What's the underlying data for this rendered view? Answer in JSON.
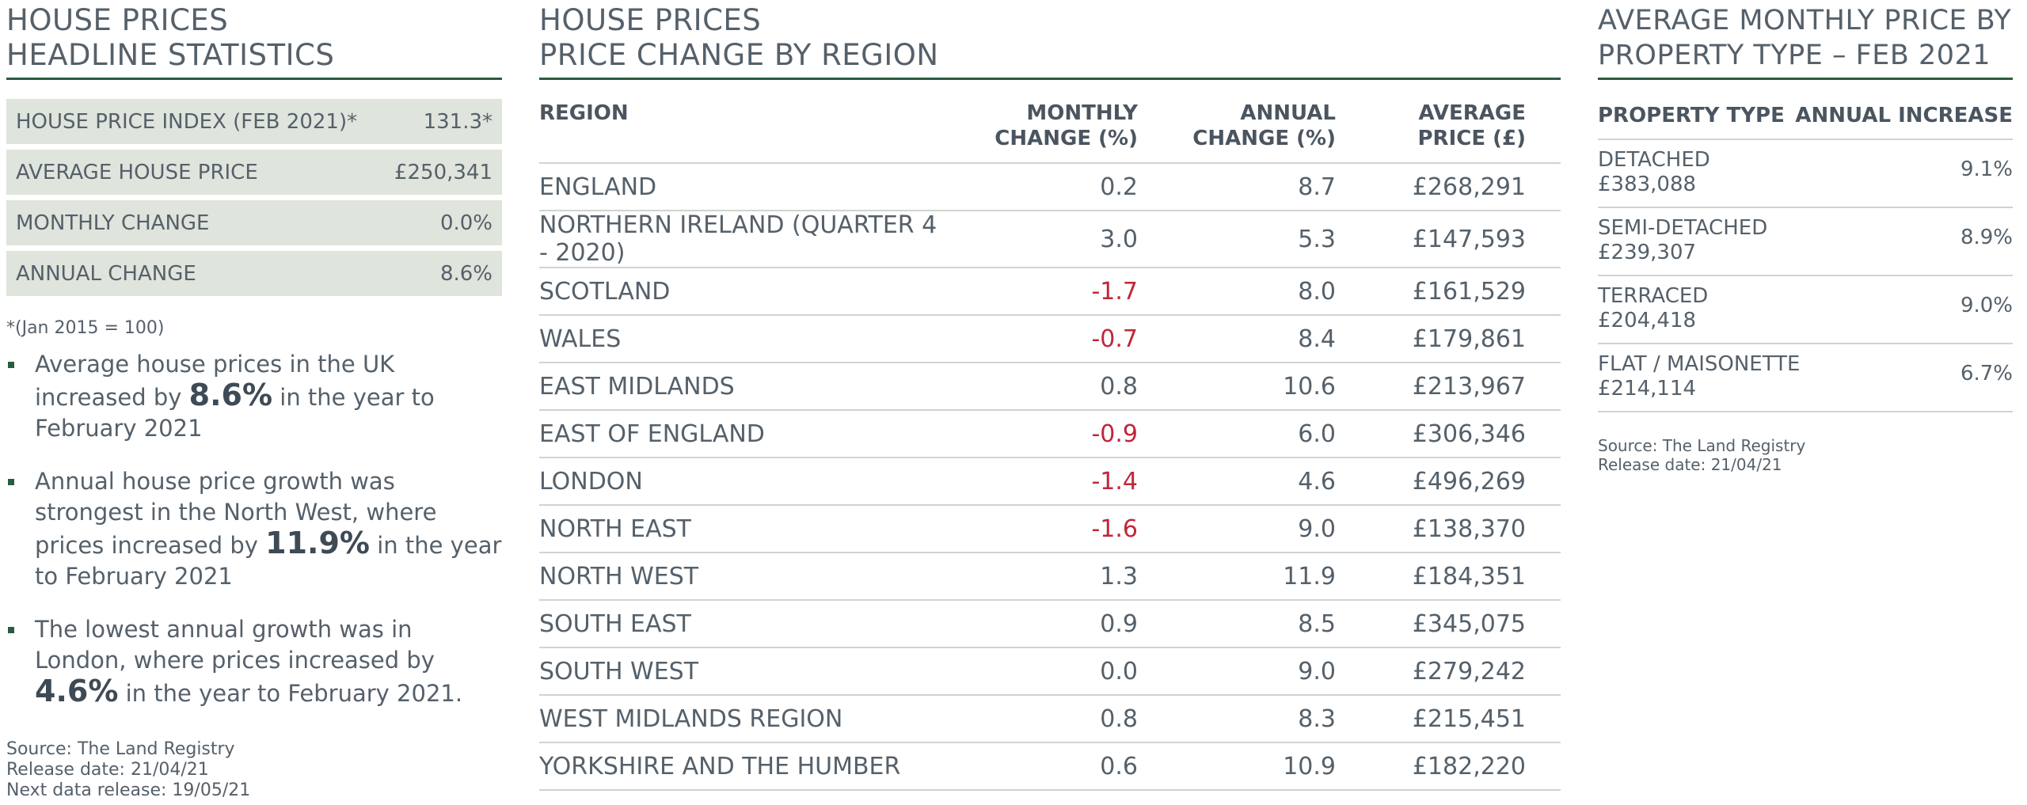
{
  "headline": {
    "title_line1": "HOUSE PRICES",
    "title_line2": "HEADLINE STATISTICS",
    "stats": [
      {
        "label": "HOUSE PRICE INDEX (FEB 2021)*",
        "value": "131.3*"
      },
      {
        "label": "AVERAGE HOUSE PRICE",
        "value": "£250,341"
      },
      {
        "label": "MONTHLY CHANGE",
        "value": "0.0%"
      },
      {
        "label": "ANNUAL CHANGE",
        "value": "8.6%"
      }
    ],
    "footnote": "*(Jan 2015 = 100)",
    "bullets": [
      {
        "pre": "Average house prices in the UK increased by ",
        "big": "8.6%",
        "post": " in the year to February 2021"
      },
      {
        "pre": "Annual house price growth was strongest in the North West, where prices increased by ",
        "big": "11.9%",
        "post": " in the year to February 2021"
      },
      {
        "pre": "The lowest annual growth was in London, where prices increased by ",
        "big": "4.6%",
        "post": " in the year to February 2021."
      }
    ],
    "source": "Source: The Land Registry",
    "release_date": "Release date: 21/04/21",
    "next_release": "Next data release: 19/05/21"
  },
  "regions": {
    "title_line1": "HOUSE PRICES",
    "title_line2": "PRICE CHANGE BY REGION",
    "headers": {
      "region": "REGION",
      "monthly_1": "MONTHLY",
      "monthly_2": "CHANGE (%)",
      "annual_1": "ANNUAL",
      "annual_2": "CHANGE (%)",
      "price_1": "AVERAGE",
      "price_2": "PRICE (£)"
    },
    "rows": [
      {
        "region": "ENGLAND",
        "monthly": "0.2",
        "annual": "8.7",
        "price": "£268,291",
        "negative": false
      },
      {
        "region": "NORTHERN IRELAND (QUARTER 4 - 2020)",
        "monthly": "3.0",
        "annual": "5.3",
        "price": "£147,593",
        "negative": false
      },
      {
        "region": "SCOTLAND",
        "monthly": "-1.7",
        "annual": "8.0",
        "price": "£161,529",
        "negative": true
      },
      {
        "region": "WALES",
        "monthly": "-0.7",
        "annual": "8.4",
        "price": "£179,861",
        "negative": true
      },
      {
        "region": "EAST MIDLANDS",
        "monthly": "0.8",
        "annual": "10.6",
        "price": "£213,967",
        "negative": false
      },
      {
        "region": "EAST OF ENGLAND",
        "monthly": "-0.9",
        "annual": "6.0",
        "price": "£306,346",
        "negative": true
      },
      {
        "region": "LONDON",
        "monthly": "-1.4",
        "annual": "4.6",
        "price": "£496,269",
        "negative": true
      },
      {
        "region": "NORTH EAST",
        "monthly": "-1.6",
        "annual": "9.0",
        "price": "£138,370",
        "negative": true
      },
      {
        "region": "NORTH WEST",
        "monthly": "1.3",
        "annual": "11.9",
        "price": "£184,351",
        "negative": false
      },
      {
        "region": "SOUTH EAST",
        "monthly": "0.9",
        "annual": "8.5",
        "price": "£345,075",
        "negative": false
      },
      {
        "region": "SOUTH WEST",
        "monthly": "0.0",
        "annual": "9.0",
        "price": "£279,242",
        "negative": false
      },
      {
        "region": "WEST MIDLANDS REGION",
        "monthly": "0.8",
        "annual": "8.3",
        "price": "£215,451",
        "negative": false
      },
      {
        "region": "YORKSHIRE AND THE HUMBER",
        "monthly": "0.6",
        "annual": "10.9",
        "price": "£182,220",
        "negative": false
      }
    ],
    "negative_color": "#c0263a"
  },
  "property": {
    "title_line1": "AVERAGE MONTHLY PRICE BY",
    "title_line2": "PROPERTY TYPE – FEB 2021",
    "header_type": "PROPERTY TYPE",
    "header_increase": "ANNUAL INCREASE",
    "rows": [
      {
        "type": "DETACHED",
        "price": "£383,088",
        "increase": "9.1%"
      },
      {
        "type": "SEMI-DETACHED",
        "price": "£239,307",
        "increase": "8.9%"
      },
      {
        "type": "TERRACED",
        "price": "£204,418",
        "increase": "9.0%"
      },
      {
        "type": "FLAT / MAISONETTE",
        "price": "£214,114",
        "increase": "6.7%"
      }
    ],
    "source": "Source: The Land Registry",
    "release_date": "Release date: 21/04/21"
  },
  "colors": {
    "accent_green": "#2a5b40",
    "stat_background": "#dfe4dc",
    "text": "#55606a"
  }
}
